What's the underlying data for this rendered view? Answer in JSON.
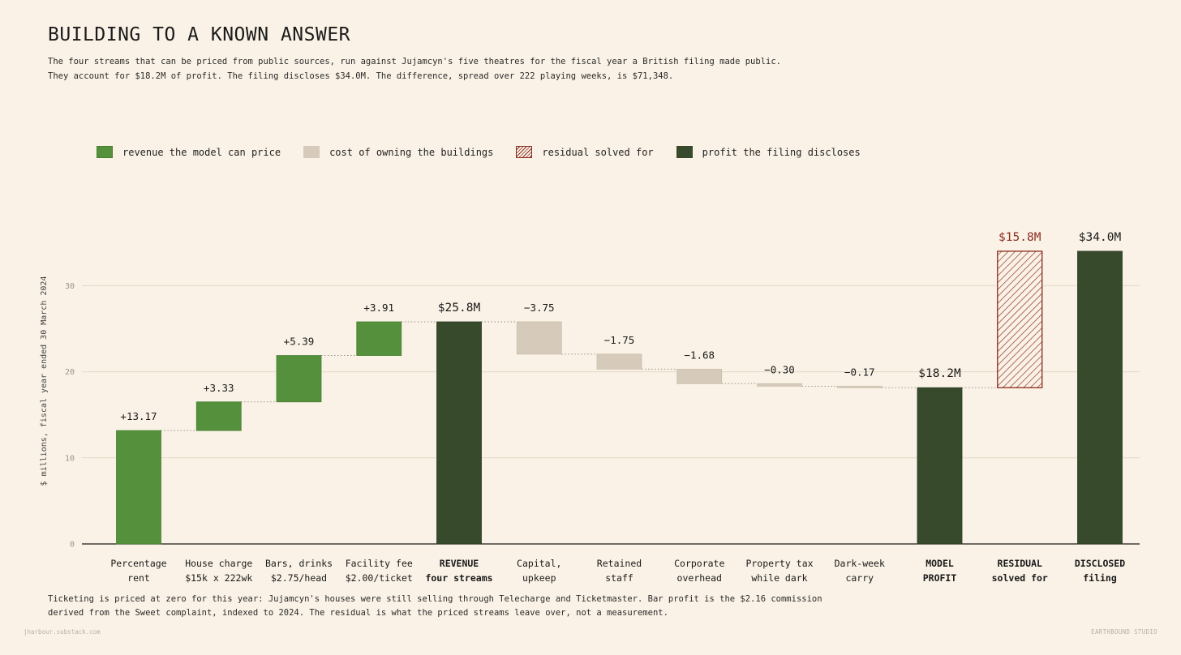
{
  "header": {
    "title": "BUILDING TO A KNOWN ANSWER",
    "subtitle_line1": "The four streams that can be priced from public sources, run against Jujamcyn's five theatres for the fiscal year a British filing made public.",
    "subtitle_line2": "They account for $18.2M of profit. The filing discloses $34.0M. The difference, spread over 222 playing weeks, is $71,348."
  },
  "legend": [
    {
      "label": "revenue the model can price",
      "swatch": "revenue"
    },
    {
      "label": "cost of owning the buildings",
      "swatch": "cost"
    },
    {
      "label": "residual solved for",
      "swatch": "residual"
    },
    {
      "label": "profit the filing discloses",
      "swatch": "profit"
    }
  ],
  "colors": {
    "revenue": "#55913C",
    "cost": "#D6CBBA",
    "residual": "#8B2A1E",
    "profit": "#384A2C",
    "background": "#FAF2E6"
  },
  "chart_data": {
    "type": "bar",
    "subtype": "waterfall",
    "ylabel": "$ millions, fiscal year ended 30 March 2024",
    "ylim": [
      0,
      36
    ],
    "yticks": [
      0,
      10,
      20,
      30
    ],
    "grid": true,
    "bars": [
      {
        "line1": "Percentage",
        "line2": "rent",
        "kind": "revenue",
        "start": 0,
        "end": 13.17,
        "label": "+13.17",
        "bold_label": false
      },
      {
        "line1": "House charge",
        "line2": "$15k x 222wk",
        "kind": "revenue",
        "start": 13.17,
        "end": 16.5,
        "label": "+3.33",
        "bold_label": false
      },
      {
        "line1": "Bars, drinks",
        "line2": "$2.75/head",
        "kind": "revenue",
        "start": 16.5,
        "end": 21.89,
        "label": "+5.39",
        "bold_label": false
      },
      {
        "line1": "Facility fee",
        "line2": "$2.00/ticket",
        "kind": "revenue",
        "start": 21.89,
        "end": 25.8,
        "label": "+3.91",
        "bold_label": false
      },
      {
        "line1": "REVENUE",
        "line2": "four streams",
        "kind": "profit",
        "start": 0,
        "end": 25.8,
        "label": "$25.8M",
        "bold_label": true
      },
      {
        "line1": "Capital,",
        "line2": "upkeep",
        "kind": "cost",
        "start": 25.8,
        "end": 22.05,
        "label": "−3.75",
        "bold_label": false
      },
      {
        "line1": "Retained",
        "line2": "staff",
        "kind": "cost",
        "start": 22.05,
        "end": 20.3,
        "label": "−1.75",
        "bold_label": false
      },
      {
        "line1": "Corporate",
        "line2": "overhead",
        "kind": "cost",
        "start": 20.3,
        "end": 18.62,
        "label": "−1.68",
        "bold_label": false
      },
      {
        "line1": "Property tax",
        "line2": "while dark",
        "kind": "cost",
        "start": 18.62,
        "end": 18.32,
        "label": "−0.30",
        "bold_label": false
      },
      {
        "line1": "Dark-week",
        "line2": "carry",
        "kind": "cost",
        "start": 18.32,
        "end": 18.15,
        "label": "−0.17",
        "bold_label": false
      },
      {
        "line1": "MODEL",
        "line2": "PROFIT",
        "kind": "profit",
        "start": 0,
        "end": 18.15,
        "label": "$18.2M",
        "bold_label": true
      },
      {
        "line1": "RESIDUAL",
        "line2": "solved for",
        "kind": "residual",
        "start": 18.15,
        "end": 34.0,
        "label": "$15.8M",
        "bold_label": true
      },
      {
        "line1": "DISCLOSED",
        "line2": "filing",
        "kind": "profit",
        "start": 0,
        "end": 34.0,
        "label": "$34.0M",
        "bold_label": true
      }
    ]
  },
  "footnote": {
    "line1": "Ticketing is priced at zero for this year: Jujamcyn's houses were still selling through Telecharge and Ticketmaster. Bar profit is the $2.16 commission",
    "line2": "derived from the Sweet complaint, indexed to 2024. The residual is what the priced streams leave over, not a measurement."
  },
  "credits": {
    "left": "jharbour.substack.com",
    "right": "EARTHBOUND STUDIO"
  }
}
